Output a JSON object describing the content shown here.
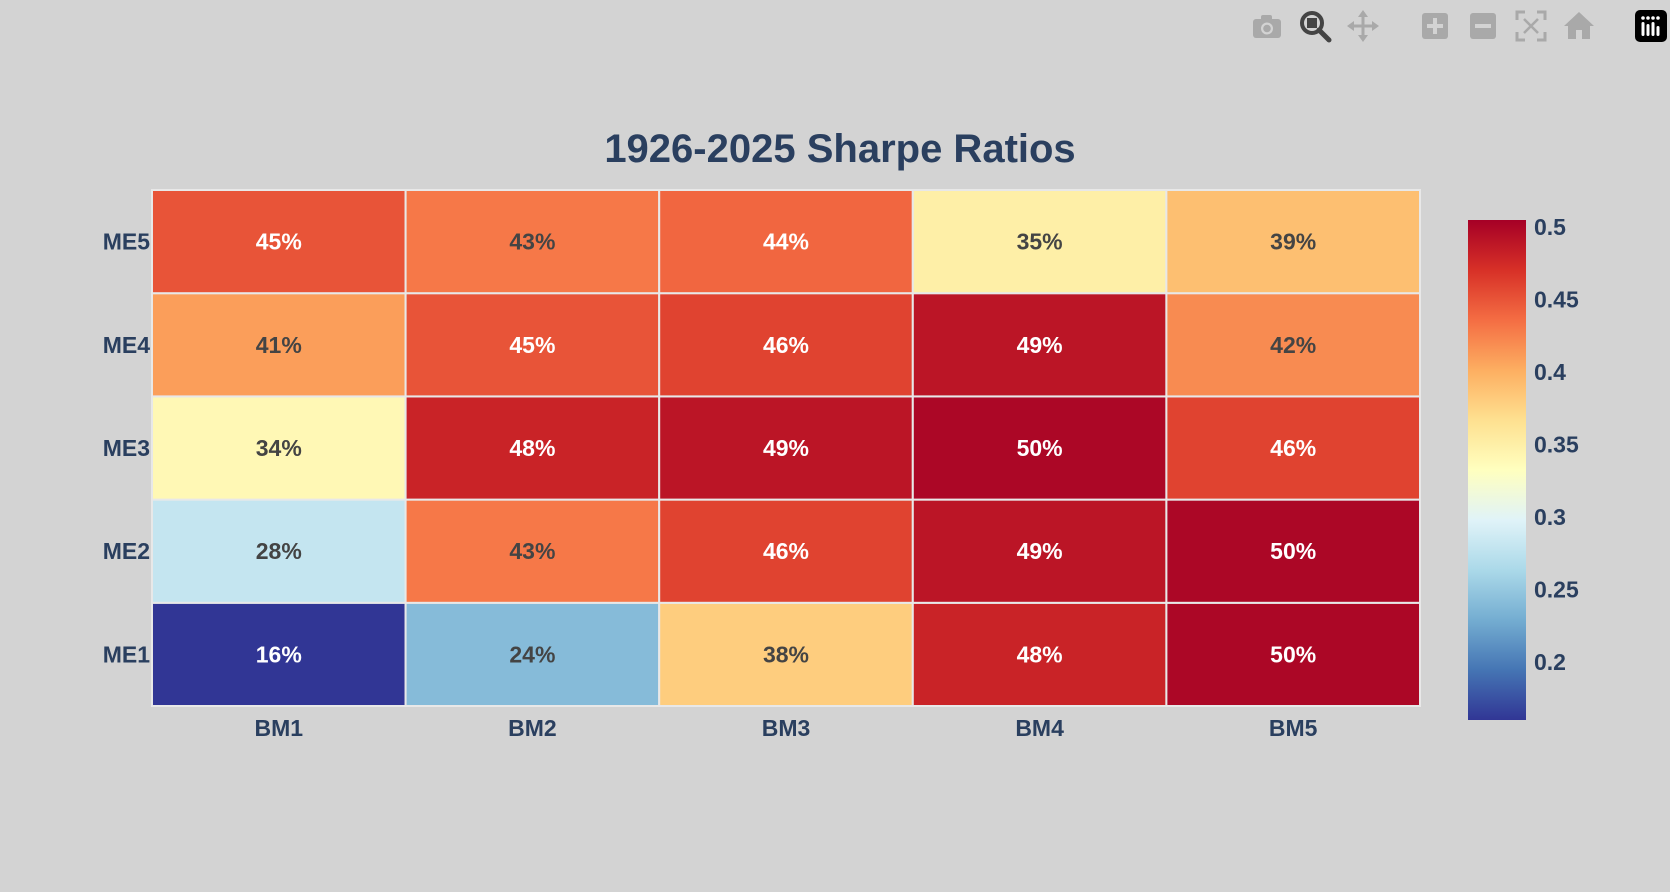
{
  "modebar": {
    "buttons": [
      {
        "name": "camera-icon",
        "color": "#a9a9a9"
      },
      {
        "name": "zoom-icon",
        "color": "#444444"
      },
      {
        "name": "pan-icon",
        "color": "#a9a9a9"
      },
      {
        "name": "zoom-in-icon",
        "color": "#a9a9a9"
      },
      {
        "name": "zoom-out-icon",
        "color": "#a9a9a9"
      },
      {
        "name": "autoscale-icon",
        "color": "#a9a9a9"
      },
      {
        "name": "home-icon",
        "color": "#a9a9a9"
      },
      {
        "name": "plotly-logo-icon",
        "color": "#000000"
      }
    ]
  },
  "chart_data": {
    "type": "heatmap",
    "title": "1926-2025 Sharpe Ratios",
    "x": [
      "BM1",
      "BM2",
      "BM3",
      "BM4",
      "BM5"
    ],
    "y": [
      "ME1",
      "ME2",
      "ME3",
      "ME4",
      "ME5"
    ],
    "z": [
      [
        0.16,
        0.24,
        0.38,
        0.48,
        0.5
      ],
      [
        0.28,
        0.43,
        0.46,
        0.49,
        0.5
      ],
      [
        0.34,
        0.48,
        0.49,
        0.5,
        0.46
      ],
      [
        0.41,
        0.45,
        0.46,
        0.49,
        0.42
      ],
      [
        0.45,
        0.43,
        0.44,
        0.35,
        0.39
      ]
    ],
    "labels": [
      [
        "16%",
        "24%",
        "38%",
        "48%",
        "50%"
      ],
      [
        "28%",
        "43%",
        "46%",
        "49%",
        "50%"
      ],
      [
        "34%",
        "48%",
        "49%",
        "50%",
        "46%"
      ],
      [
        "41%",
        "45%",
        "46%",
        "49%",
        "42%"
      ],
      [
        "45%",
        "43%",
        "44%",
        "35%",
        "39%"
      ]
    ],
    "colorscale": "RdYlBu_r",
    "zlim": [
      0.16,
      0.505
    ],
    "colorbar": {
      "ticks": [
        0.2,
        0.25,
        0.3,
        0.35,
        0.4,
        0.45,
        0.5
      ],
      "tick_labels": [
        "0.2",
        "0.25",
        "0.3",
        "0.35",
        "0.4",
        "0.45",
        "0.5"
      ]
    },
    "grid": false,
    "cell_border_color": "#e8e8e8"
  }
}
